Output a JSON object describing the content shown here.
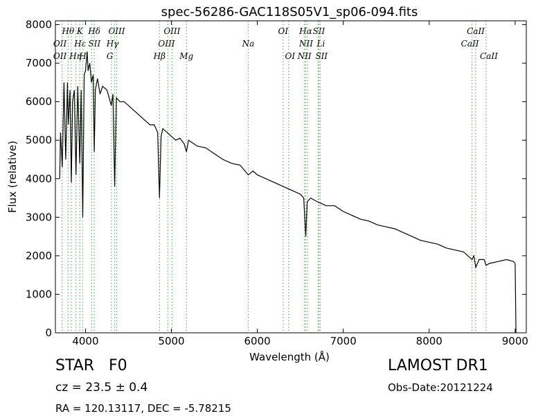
{
  "chart_data": {
    "type": "line",
    "title": "spec-56286-GAC118S05V1_sp06-094.fits",
    "x_label": "Wavelength (Å)",
    "y_label": "Flux (relative)",
    "xlim": [
      3650,
      9130
    ],
    "ylim": [
      0,
      8100
    ],
    "xticks": [
      4000,
      5000,
      6000,
      7000,
      8000,
      9000
    ],
    "yticks": [
      0,
      1000,
      2000,
      3000,
      4000,
      5000,
      6000,
      7000,
      8000
    ],
    "color": "#000000",
    "line_color": "#5ab45a",
    "x": [
      3700,
      3710,
      3730,
      3750,
      3770,
      3790,
      3800,
      3820,
      3835,
      3850,
      3870,
      3889,
      3910,
      3934,
      3950,
      3968,
      3985,
      4000,
      4020,
      4030,
      4050,
      4070,
      4090,
      4102,
      4115,
      4140,
      4170,
      4200,
      4250,
      4300,
      4320,
      4340,
      4360,
      4400,
      4450,
      4500,
      4550,
      4600,
      4650,
      4700,
      4750,
      4800,
      4840,
      4861,
      4880,
      4900,
      4950,
      5000,
      5050,
      5100,
      5150,
      5175,
      5200,
      5300,
      5400,
      5500,
      5600,
      5700,
      5800,
      5894,
      5950,
      6000,
      6100,
      6200,
      6300,
      6400,
      6500,
      6540,
      6563,
      6580,
      6620,
      6700,
      6800,
      6900,
      7000,
      7100,
      7200,
      7300,
      7400,
      7500,
      7600,
      7700,
      7800,
      7900,
      8000,
      8100,
      8200,
      8300,
      8400,
      8498,
      8520,
      8542,
      8580,
      8640,
      8662,
      8700,
      8800,
      8900,
      8980,
      9000,
      9010
    ],
    "values": [
      4000,
      5200,
      4300,
      6500,
      4500,
      6500,
      5400,
      6300,
      3900,
      6000,
      6300,
      4100,
      6400,
      4400,
      6300,
      3000,
      6700,
      6800,
      7300,
      6800,
      7000,
      6500,
      6700,
      4700,
      6300,
      6600,
      6200,
      6400,
      6300,
      5900,
      6200,
      3800,
      6100,
      6000,
      6000,
      5900,
      5800,
      5700,
      5600,
      5500,
      5400,
      5400,
      5200,
      3500,
      5100,
      5300,
      5200,
      5100,
      5000,
      5050,
      4900,
      4700,
      5000,
      4850,
      4800,
      4650,
      4500,
      4400,
      4350,
      4100,
      4200,
      4100,
      4000,
      3900,
      3800,
      3700,
      3600,
      3500,
      2500,
      3400,
      3500,
      3400,
      3300,
      3300,
      3150,
      3050,
      2950,
      2900,
      2800,
      2750,
      2700,
      2600,
      2500,
      2400,
      2350,
      2300,
      2200,
      2150,
      2100,
      1900,
      2000,
      1700,
      1900,
      1900,
      1750,
      1800,
      1850,
      1900,
      1850,
      1800,
      0
    ],
    "lines": [
      {
        "text": "Hθ",
        "x": 3798
      },
      {
        "text": "OII",
        "x": 3727
      },
      {
        "text": "OII",
        "x": 3727
      },
      {
        "text": "Hη",
        "x": 3835
      },
      {
        "text": "K",
        "x": 3934
      },
      {
        "text": "Hε",
        "x": 3889
      },
      {
        "text": "H",
        "x": 3968
      },
      {
        "text": "SII",
        "x": 4072
      },
      {
        "text": "Hδ",
        "x": 4102
      },
      {
        "text": "OIII",
        "x": 4363
      },
      {
        "text": "Hγ",
        "x": 4340
      },
      {
        "text": "G",
        "x": 4300
      },
      {
        "text": "OIII",
        "x": 5007
      },
      {
        "text": "OIII",
        "x": 4959
      },
      {
        "text": "Hβ",
        "x": 4861
      },
      {
        "text": "Mg",
        "x": 5175
      },
      {
        "text": "Na",
        "x": 5894
      },
      {
        "text": "OI",
        "x": 6300
      },
      {
        "text": "OI",
        "x": 6364
      },
      {
        "text": "Hα",
        "x": 6563
      },
      {
        "text": "SII",
        "x": 6716
      },
      {
        "text": "NII",
        "x": 6583
      },
      {
        "text": "Li",
        "x": 6708
      },
      {
        "text": "NII",
        "x": 6548
      },
      {
        "text": "SII",
        "x": 6731
      },
      {
        "text": "CaII",
        "x": 8542
      },
      {
        "text": "CaII",
        "x": 8498
      },
      {
        "text": "CaII",
        "x": 8662
      }
    ],
    "info": {
      "class": "STAR   F0",
      "cz": "cz = 23.5 ± 0.4",
      "coords": "RA = 120.13117, DEC = -5.78215",
      "survey": "LAMOST DR1",
      "date": "Obs-Date:20121224"
    }
  }
}
